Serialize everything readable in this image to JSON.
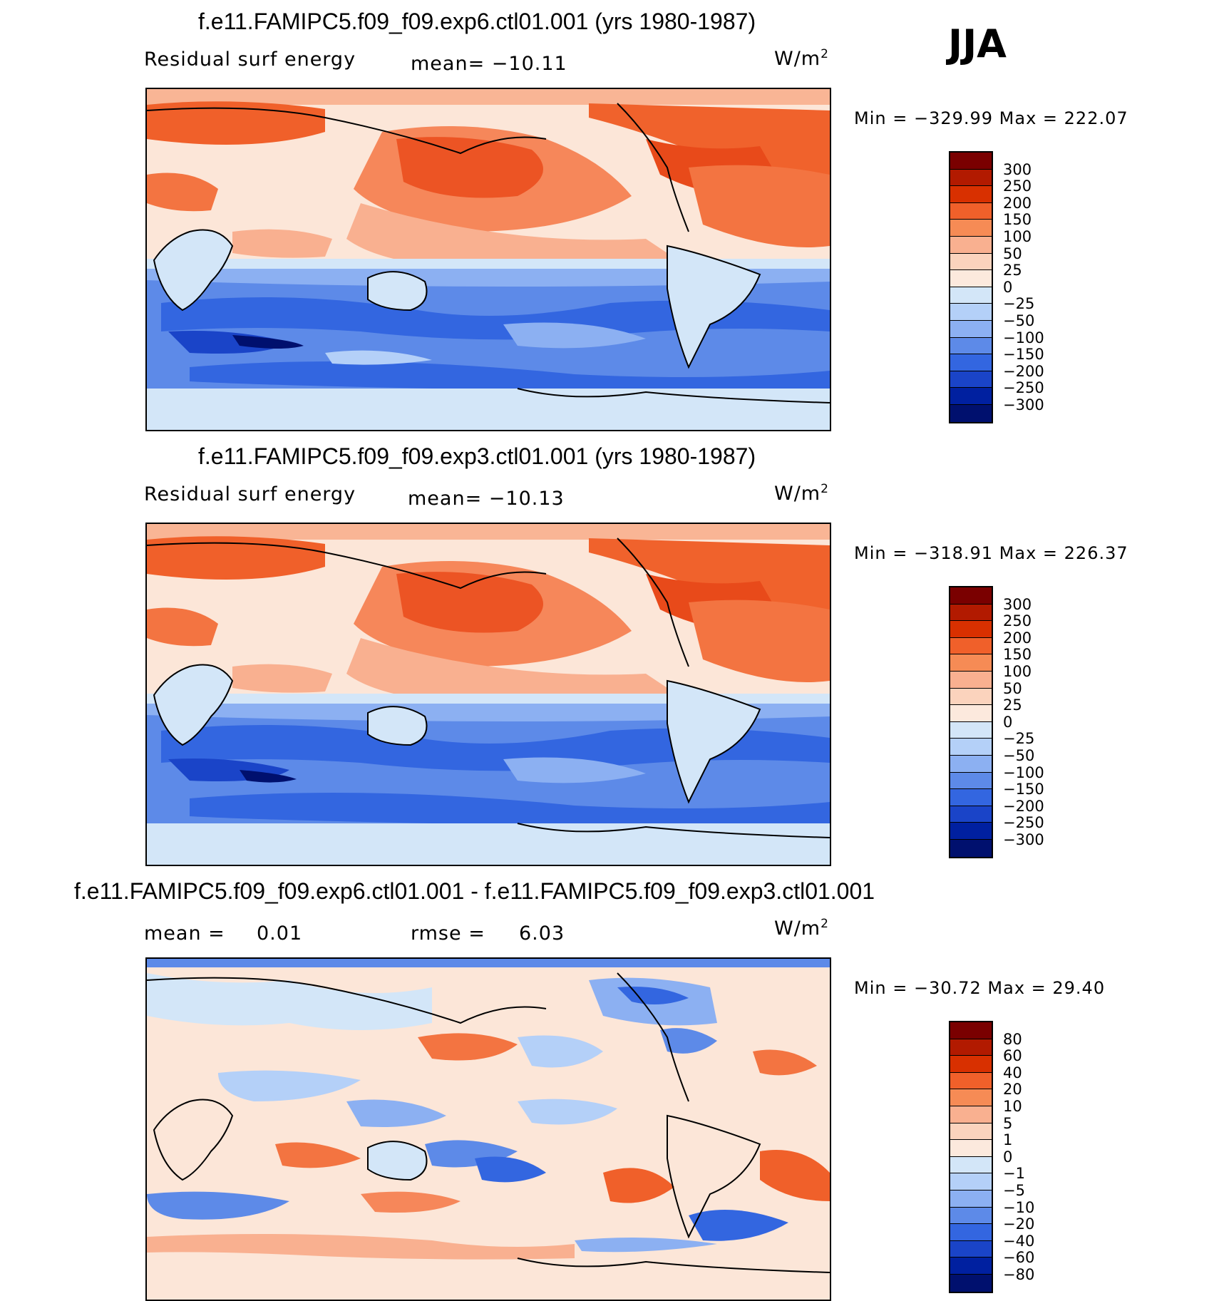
{
  "season": "JJA",
  "panels": [
    {
      "title": "f.e11.FAMIPC5.f09_f09.exp6.ctl01.001 (yrs 1980-1987)",
      "left_label": "Residual surf energy",
      "mean_text": "mean= −10.11",
      "unit_base": "W/m",
      "unit_exp": "2",
      "minmax": "Min = −329.99 Max = 222.07",
      "colorbar": {
        "labels": [
          "300",
          "250",
          "200",
          "150",
          "100",
          "50",
          "25",
          "0",
          "−25",
          "−50",
          "−100",
          "−150",
          "−200",
          "−250",
          "−300"
        ],
        "colors": [
          "#7a0000",
          "#b21a00",
          "#d83000",
          "#f0602a",
          "#f68b55",
          "#f9b090",
          "#fbd3bd",
          "#fce9dd",
          "#d3e6f8",
          "#b4d0f8",
          "#8cb0f2",
          "#5d8ae8",
          "#3366e0",
          "#1a44c8",
          "#0020a0",
          "#00106e"
        ]
      }
    },
    {
      "title": "f.e11.FAMIPC5.f09_f09.exp3.ctl01.001 (yrs 1980-1987)",
      "left_label": "Residual surf energy",
      "mean_text": "mean= −10.13",
      "unit_base": "W/m",
      "unit_exp": "2",
      "minmax": "Min = −318.91 Max = 226.37",
      "colorbar": {
        "labels": [
          "300",
          "250",
          "200",
          "150",
          "100",
          "50",
          "25",
          "0",
          "−25",
          "−50",
          "−100",
          "−150",
          "−200",
          "−250",
          "−300"
        ],
        "colors": [
          "#7a0000",
          "#b21a00",
          "#d83000",
          "#f0602a",
          "#f68b55",
          "#f9b090",
          "#fbd3bd",
          "#fce9dd",
          "#d3e6f8",
          "#b4d0f8",
          "#8cb0f2",
          "#5d8ae8",
          "#3366e0",
          "#1a44c8",
          "#0020a0",
          "#00106e"
        ]
      }
    },
    {
      "title": "f.e11.FAMIPC5.f09_f09.exp6.ctl01.001 - f.e11.FAMIPC5.f09_f09.exp3.ctl01.001",
      "mean_label": "mean =",
      "mean_value": "0.01",
      "rmse_label": "rmse =",
      "rmse_value": "6.03",
      "unit_base": "W/m",
      "unit_exp": "2",
      "minmax": "Min = −30.72 Max =  29.40",
      "colorbar": {
        "labels": [
          "80",
          "60",
          "40",
          "20",
          "10",
          "5",
          "1",
          "0",
          "−1",
          "−5",
          "−10",
          "−20",
          "−40",
          "−60",
          "−80"
        ],
        "colors": [
          "#7a0000",
          "#b21a00",
          "#d83000",
          "#f0602a",
          "#f68b55",
          "#f9b090",
          "#fbd3bd",
          "#fce9dd",
          "#d3e6f8",
          "#b4d0f8",
          "#8cb0f2",
          "#5d8ae8",
          "#3366e0",
          "#1a44c8",
          "#0020a0",
          "#00106e"
        ]
      }
    }
  ]
}
